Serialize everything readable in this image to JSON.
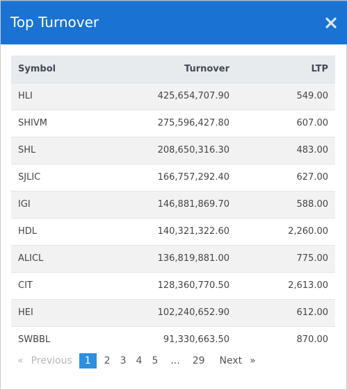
{
  "modal": {
    "title": "Top Turnover",
    "close_icon": "close-icon"
  },
  "table": {
    "headers": [
      "Symbol",
      "Turnover",
      "LTP"
    ],
    "rows": [
      {
        "symbol": "HLI",
        "turnover": "425,654,707.90",
        "ltp": "549.00"
      },
      {
        "symbol": "SHIVM",
        "turnover": "275,596,427.80",
        "ltp": "607.00"
      },
      {
        "symbol": "SHL",
        "turnover": "208,650,316.30",
        "ltp": "483.00"
      },
      {
        "symbol": "SJLIC",
        "turnover": "166,757,292.40",
        "ltp": "627.00"
      },
      {
        "symbol": "IGI",
        "turnover": "146,881,869.70",
        "ltp": "588.00"
      },
      {
        "symbol": "HDL",
        "turnover": "140,321,322.60",
        "ltp": "2,260.00"
      },
      {
        "symbol": "ALICL",
        "turnover": "136,819,881.00",
        "ltp": "775.00"
      },
      {
        "symbol": "CIT",
        "turnover": "128,360,770.50",
        "ltp": "2,613.00"
      },
      {
        "symbol": "HEI",
        "turnover": "102,240,652.90",
        "ltp": "612.00"
      },
      {
        "symbol": "SWBBL",
        "turnover": "91,330,663.50",
        "ltp": "870.00"
      }
    ]
  },
  "pagination": {
    "first_symbol": "«",
    "previous": "Previous",
    "pages": [
      "1",
      "2",
      "3",
      "4",
      "5"
    ],
    "ellipsis": "...",
    "last_page": "29",
    "next": "Next",
    "last_symbol": "»",
    "active_page": "1"
  }
}
